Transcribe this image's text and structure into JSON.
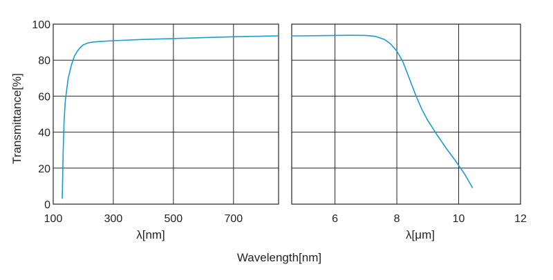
{
  "chart_data": {
    "type": "line",
    "title": "",
    "ylabel": "Transmittance[%]",
    "shared_xlabel": "Wavelength[nm]",
    "ylim": [
      0,
      100
    ],
    "yticks": [
      0,
      20,
      40,
      60,
      80,
      100
    ],
    "grid": true,
    "color": "#1a9ad6",
    "panels": [
      {
        "id": "left",
        "xlabel": "λ[nm]",
        "xlim": [
          100,
          850
        ],
        "xticks": [
          100,
          300,
          500,
          700
        ],
        "series": [
          {
            "x": [
              130,
              131,
              133,
              136,
              140,
              145,
              150,
              160,
              170,
              180,
              190,
              200,
              215,
              230,
              250,
              300,
              400,
              500,
              600,
              700,
              850
            ],
            "y": [
              3,
              12,
              28,
              45,
              57,
              64,
              70,
              77,
              82,
              85,
              87,
              88.5,
              89.5,
              90,
              90.3,
              90.8,
              91.5,
              92,
              92.5,
              93,
              93.5
            ]
          }
        ]
      },
      {
        "id": "right",
        "xlabel": "λ[μm]",
        "xlim": [
          4.6,
          12
        ],
        "xticks": [
          6,
          8,
          10,
          12
        ],
        "series": [
          {
            "x": [
              4.6,
              5.0,
              5.5,
              6.0,
              6.5,
              7.0,
              7.3,
              7.6,
              7.8,
              8.0,
              8.2,
              8.4,
              8.6,
              8.8,
              9.0,
              9.3,
              9.6,
              9.9,
              10.2,
              10.45
            ],
            "y": [
              93.5,
              93.5,
              93.6,
              93.7,
              93.8,
              93.7,
              93.2,
              91.5,
              89,
              85,
              79,
              70,
              61,
              53,
              46.5,
              38.5,
              31,
              24,
              16.5,
              9
            ]
          }
        ]
      }
    ]
  }
}
